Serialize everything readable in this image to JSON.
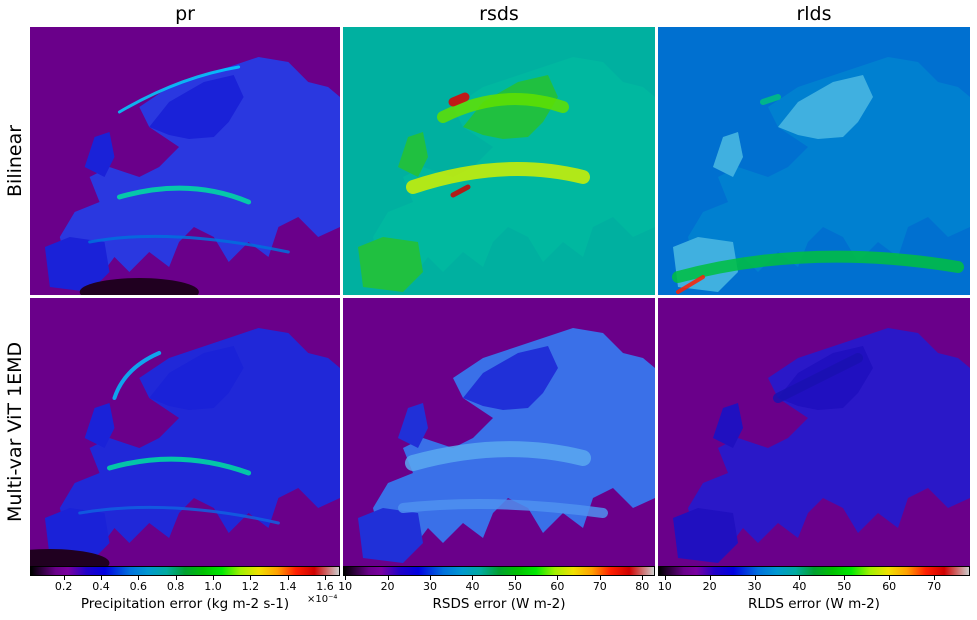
{
  "figure": {
    "columns": [
      {
        "title": "pr",
        "colorbar_label": "Precipitation error (kg m-2 s-1)",
        "colorbar_exponent": "×10⁻⁴",
        "ticks": [
          "0.2",
          "0.4",
          "0.6",
          "0.8",
          "1.0",
          "1.2",
          "1.4",
          "1.6"
        ],
        "range": [
          0.02,
          1.68
        ]
      },
      {
        "title": "rsds",
        "colorbar_label": "RSDS error (W m-2)",
        "colorbar_exponent": "",
        "ticks": [
          "10",
          "20",
          "30",
          "40",
          "50",
          "60",
          "70",
          "80"
        ],
        "range": [
          9.5,
          83
        ]
      },
      {
        "title": "rlds",
        "colorbar_label": "RLDS error (W m-2)",
        "colorbar_exponent": "",
        "ticks": [
          "10",
          "20",
          "30",
          "40",
          "50",
          "60",
          "70"
        ],
        "range": [
          8.5,
          78
        ]
      }
    ],
    "rows": [
      {
        "label": "Bilinear"
      },
      {
        "label": "Multi-var ViT 1EMD"
      }
    ]
  },
  "chart_data": {
    "type": "heatmap",
    "colormap": "nipy_spectral",
    "panels": [
      {
        "row": "Bilinear",
        "column": "pr"
      },
      {
        "row": "Bilinear",
        "column": "rsds"
      },
      {
        "row": "Bilinear",
        "column": "rlds"
      },
      {
        "row": "Multi-var ViT 1EMD",
        "column": "pr"
      },
      {
        "row": "Multi-var ViT 1EMD",
        "column": "rsds"
      },
      {
        "row": "Multi-var ViT 1EMD",
        "column": "rlds"
      }
    ],
    "colors": {
      "sea_low": "#6a008a",
      "land_low": "#1a22d8",
      "mid": "#00c8a0",
      "high_green": "#30e000",
      "peak": "#e00000"
    }
  }
}
